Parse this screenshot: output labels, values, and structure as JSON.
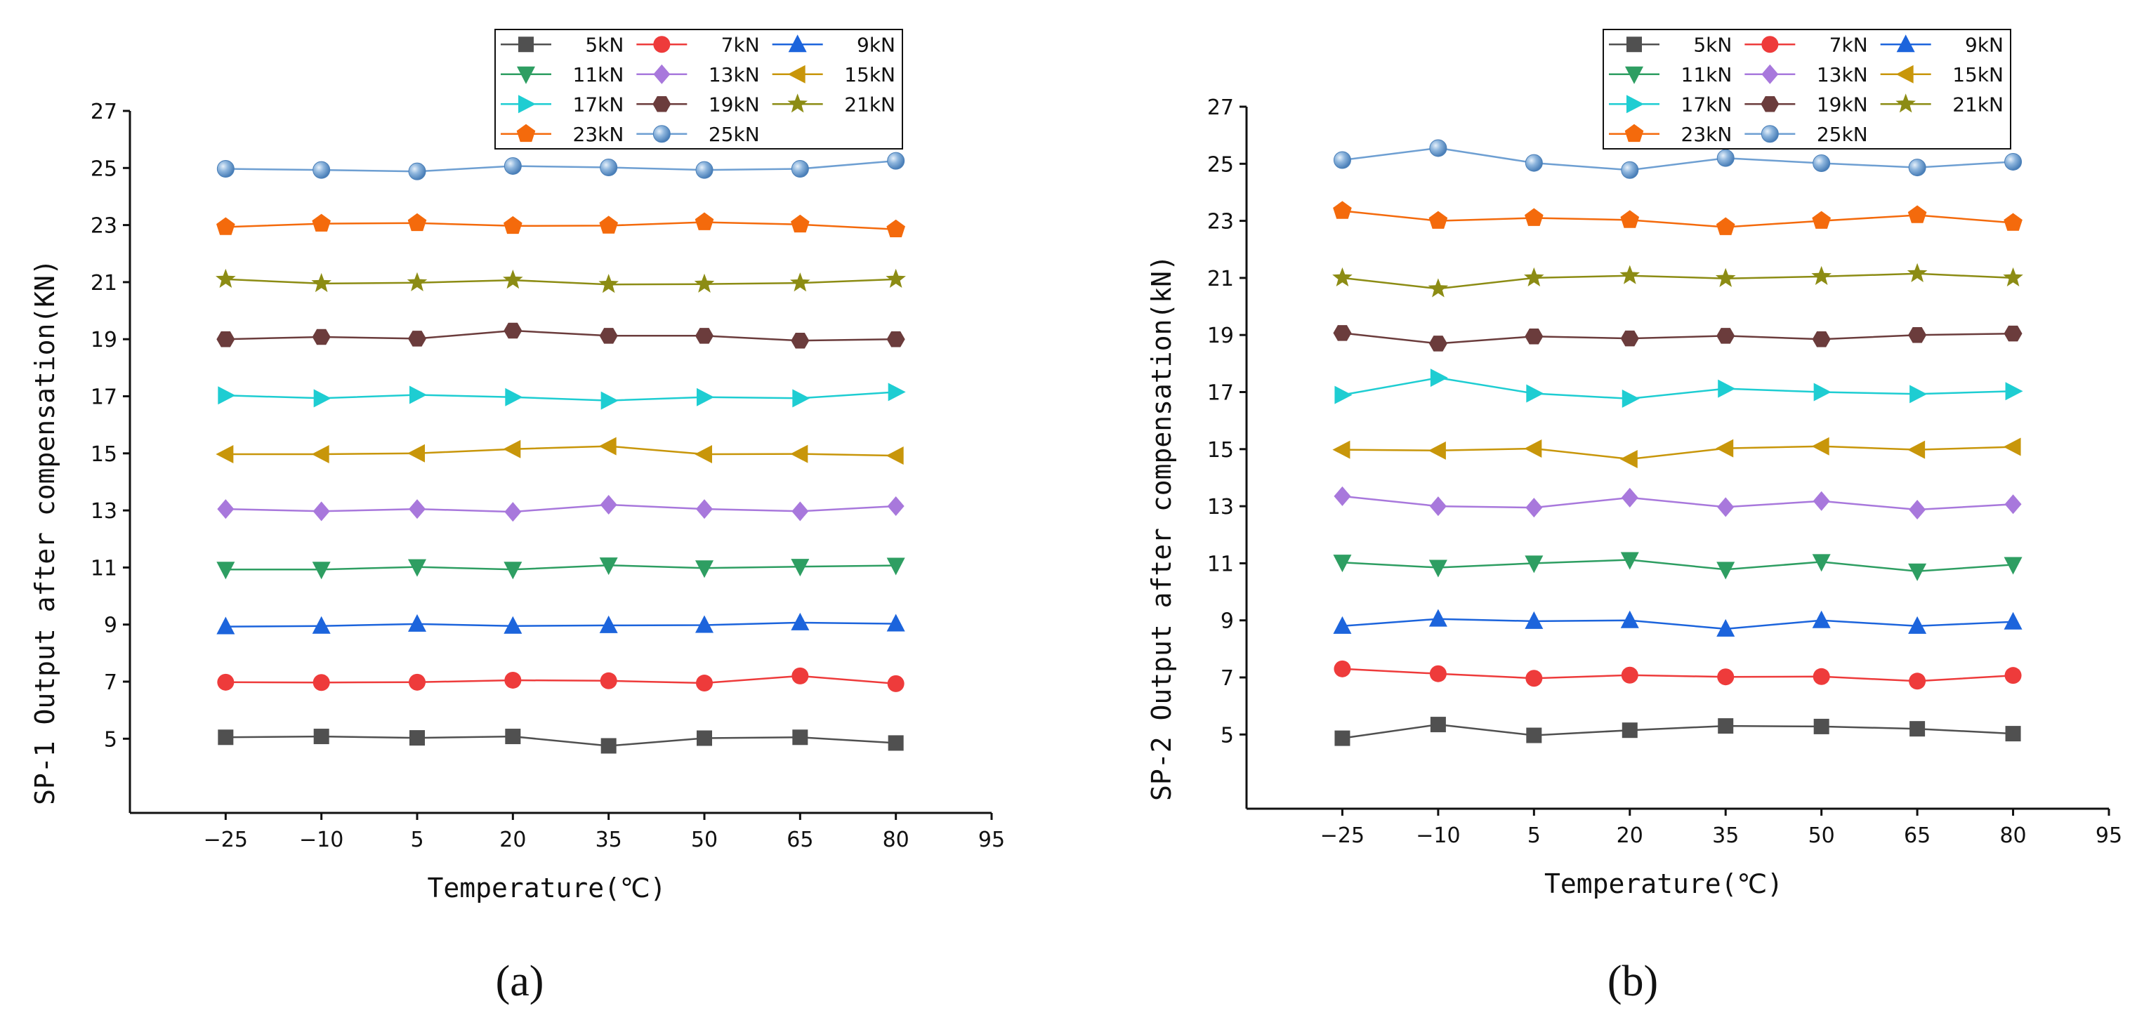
{
  "chart_data": [
    {
      "type": "line",
      "panel_label": "(a)",
      "xlabel": "Temperature(℃)",
      "ylabel": "SP-1 Output after compensation(KN)",
      "x": [
        -25,
        -10,
        5,
        20,
        35,
        50,
        65,
        80
      ],
      "x_ticks": [
        -25,
        -10,
        5,
        20,
        35,
        50,
        65,
        80,
        95
      ],
      "y_ticks": [
        5,
        7,
        9,
        11,
        13,
        15,
        17,
        19,
        21,
        23,
        25,
        27
      ],
      "xlim": [
        -40,
        95
      ],
      "ylim": [
        2.4,
        27
      ],
      "legend_position": "top-right",
      "series": [
        {
          "name": "5kN",
          "values": [
            5.05,
            5.08,
            5.03,
            5.08,
            4.75,
            5.02,
            5.05,
            4.85
          ]
        },
        {
          "name": "7kN",
          "values": [
            6.98,
            6.97,
            6.98,
            7.05,
            7.03,
            6.95,
            7.2,
            6.93
          ]
        },
        {
          "name": "9kN",
          "values": [
            8.93,
            8.95,
            9.02,
            8.95,
            8.97,
            8.98,
            9.07,
            9.03
          ]
        },
        {
          "name": "11kN",
          "values": [
            10.93,
            10.93,
            11.02,
            10.93,
            11.08,
            10.98,
            11.03,
            11.07
          ]
        },
        {
          "name": "13kN",
          "values": [
            13.05,
            12.97,
            13.05,
            12.95,
            13.2,
            13.05,
            12.97,
            13.15
          ]
        },
        {
          "name": "15kN",
          "values": [
            14.97,
            14.97,
            15.0,
            15.15,
            15.25,
            14.97,
            14.98,
            14.92
          ]
        },
        {
          "name": "17kN",
          "values": [
            17.03,
            16.93,
            17.05,
            16.97,
            16.85,
            16.97,
            16.93,
            17.15
          ]
        },
        {
          "name": "19kN",
          "values": [
            19.0,
            19.08,
            19.02,
            19.3,
            19.12,
            19.12,
            18.95,
            19.0
          ]
        },
        {
          "name": "21kN",
          "values": [
            21.1,
            20.95,
            20.98,
            21.07,
            20.92,
            20.93,
            20.97,
            21.1
          ]
        },
        {
          "name": "23kN",
          "values": [
            22.93,
            23.05,
            23.07,
            22.97,
            22.98,
            23.1,
            23.02,
            22.85
          ]
        },
        {
          "name": "25kN",
          "values": [
            24.97,
            24.93,
            24.88,
            25.07,
            25.02,
            24.93,
            24.97,
            25.25
          ]
        }
      ]
    },
    {
      "type": "line",
      "panel_label": "(b)",
      "xlabel": "Temperature(℃)",
      "ylabel": "SP-2 Output after compensation(kN)",
      "x": [
        -25,
        -10,
        5,
        20,
        35,
        50,
        65,
        80
      ],
      "x_ticks": [
        -25,
        -10,
        5,
        20,
        35,
        50,
        65,
        80,
        95
      ],
      "y_ticks": [
        5,
        7,
        9,
        11,
        13,
        15,
        17,
        19,
        21,
        23,
        25,
        27
      ],
      "xlim": [
        -40,
        95
      ],
      "ylim": [
        2.4,
        27
      ],
      "legend_position": "top-right",
      "series": [
        {
          "name": "5kN",
          "values": [
            4.87,
            5.35,
            4.97,
            5.15,
            5.3,
            5.28,
            5.2,
            5.03
          ]
        },
        {
          "name": "7kN",
          "values": [
            7.3,
            7.13,
            6.97,
            7.08,
            7.02,
            7.03,
            6.87,
            7.07
          ]
        },
        {
          "name": "9kN",
          "values": [
            8.8,
            9.05,
            8.97,
            9.0,
            8.7,
            9.0,
            8.8,
            8.95
          ]
        },
        {
          "name": "11kN",
          "values": [
            11.03,
            10.85,
            11.0,
            11.12,
            10.78,
            11.05,
            10.72,
            10.95
          ]
        },
        {
          "name": "13kN",
          "values": [
            13.35,
            13.0,
            12.95,
            13.3,
            12.97,
            13.18,
            12.88,
            13.07
          ]
        },
        {
          "name": "15kN",
          "values": [
            14.98,
            14.95,
            15.02,
            14.65,
            15.03,
            15.1,
            14.98,
            15.08
          ]
        },
        {
          "name": "17kN",
          "values": [
            16.9,
            17.5,
            16.95,
            16.77,
            17.12,
            17.0,
            16.93,
            17.03
          ]
        },
        {
          "name": "19kN",
          "values": [
            19.07,
            18.7,
            18.95,
            18.88,
            18.97,
            18.85,
            19.0,
            19.05
          ]
        },
        {
          "name": "21kN",
          "values": [
            21.0,
            20.62,
            21.0,
            21.08,
            20.98,
            21.05,
            21.15,
            21.0
          ]
        },
        {
          "name": "23kN",
          "values": [
            23.35,
            23.0,
            23.1,
            23.03,
            22.78,
            23.0,
            23.2,
            22.93
          ]
        },
        {
          "name": "25kN",
          "values": [
            25.13,
            25.55,
            25.03,
            24.78,
            25.2,
            25.02,
            24.87,
            25.07
          ]
        }
      ]
    }
  ],
  "series_style": [
    {
      "marker": "square",
      "color": "#505050"
    },
    {
      "marker": "circle",
      "color": "#ee3b3b"
    },
    {
      "marker": "triangle-up",
      "color": "#1c64dc"
    },
    {
      "marker": "triangle-down",
      "color": "#2e9e62"
    },
    {
      "marker": "diamond",
      "color": "#a878dc"
    },
    {
      "marker": "triangle-left",
      "color": "#c8960a"
    },
    {
      "marker": "triangle-right",
      "color": "#1ecdd2"
    },
    {
      "marker": "hexagon",
      "color": "#6b3c3c"
    },
    {
      "marker": "star",
      "color": "#8c8c14"
    },
    {
      "marker": "pentagon",
      "color": "#f46a0c"
    },
    {
      "marker": "sphere",
      "color": "#6e9fd2"
    }
  ]
}
